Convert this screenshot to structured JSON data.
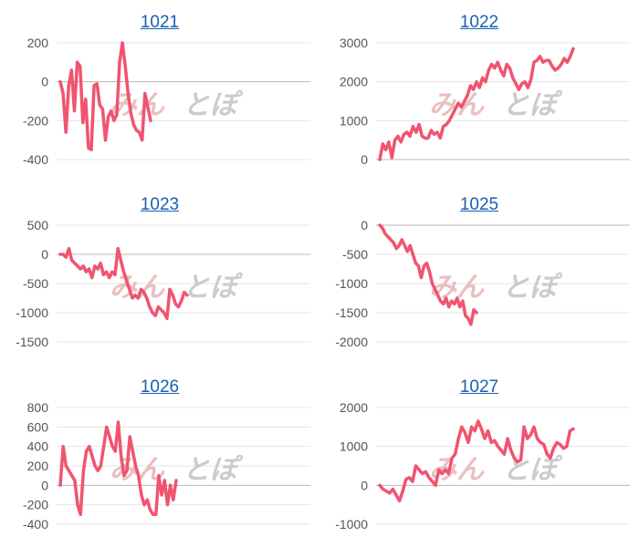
{
  "watermark": {
    "part1": "みん",
    "part2": "とぽ"
  },
  "colors": {
    "series": "#f0546f",
    "title": "#1a5fb4",
    "grid": "#e4e4e4"
  },
  "chart_data": [
    {
      "type": "line",
      "title": "1021",
      "ylim": [
        -400,
        200
      ],
      "yticks": [
        200,
        0,
        -200,
        -400
      ],
      "y": [
        0,
        -60,
        -260,
        -20,
        60,
        -150,
        100,
        80,
        -210,
        -90,
        -340,
        -350,
        -20,
        -10,
        -120,
        -140,
        -300,
        -180,
        -150,
        -200,
        -170,
        100,
        200,
        80,
        -60,
        -160,
        -220,
        -250,
        -260,
        -300,
        -60,
        -130,
        -200
      ]
    },
    {
      "type": "line",
      "title": "1022",
      "ylim": [
        0,
        3000
      ],
      "yticks": [
        3000,
        2000,
        1000,
        0
      ],
      "y": [
        0,
        400,
        250,
        450,
        50,
        500,
        600,
        450,
        650,
        700,
        600,
        850,
        700,
        900,
        600,
        550,
        550,
        750,
        650,
        700,
        550,
        850,
        900,
        1000,
        1150,
        1300,
        1450,
        1350,
        1500,
        1650,
        1900,
        1800,
        2000,
        1850,
        2100,
        2000,
        2300,
        2450,
        2350,
        2500,
        2300,
        2150,
        2450,
        2350,
        2100,
        1950,
        1800,
        1950,
        2000,
        1850,
        2050,
        2500,
        2550,
        2650,
        2500,
        2550,
        2550,
        2400,
        2300,
        2350,
        2450,
        2600,
        2500,
        2650,
        2850
      ]
    },
    {
      "type": "line",
      "title": "1023",
      "ylim": [
        -1500,
        500
      ],
      "yticks": [
        500,
        0,
        -500,
        -1000,
        -1500
      ],
      "y": [
        0,
        0,
        -50,
        100,
        -100,
        -150,
        -200,
        -250,
        -200,
        -300,
        -250,
        -400,
        -200,
        -250,
        -150,
        -350,
        -300,
        -400,
        -300,
        -350,
        100,
        -100,
        -300,
        -450,
        -600,
        -750,
        -700,
        -750,
        -600,
        -650,
        -750,
        -900,
        -1000,
        -1050,
        -900,
        -950,
        -1000,
        -1100,
        -600,
        -700,
        -850,
        -900,
        -800,
        -650,
        -700
      ]
    },
    {
      "type": "line",
      "title": "1025",
      "ylim": [
        -2000,
        0
      ],
      "yticks": [
        0,
        -500,
        -1000,
        -1500,
        -2000
      ],
      "y": [
        0,
        -50,
        -150,
        -200,
        -250,
        -300,
        -400,
        -350,
        -250,
        -350,
        -450,
        -350,
        -500,
        -650,
        -700,
        -900,
        -700,
        -650,
        -800,
        -1000,
        -1100,
        -1200,
        -1300,
        -1350,
        -1250,
        -1400,
        -1300,
        -1350,
        -1250,
        -1400,
        -1300,
        -1550,
        -1600,
        -1700,
        -1450,
        -1500
      ]
    },
    {
      "type": "line",
      "title": "1026",
      "ylim": [
        -400,
        800
      ],
      "yticks": [
        800,
        600,
        400,
        200,
        0,
        -200,
        -400
      ],
      "y": [
        0,
        400,
        200,
        150,
        100,
        50,
        -200,
        -300,
        150,
        350,
        400,
        300,
        200,
        150,
        200,
        400,
        600,
        500,
        400,
        350,
        650,
        300,
        100,
        150,
        500,
        350,
        200,
        100,
        -100,
        -200,
        -150,
        -250,
        -300,
        -300,
        100,
        -100,
        50,
        -200,
        0,
        -150,
        50
      ]
    },
    {
      "type": "line",
      "title": "1027",
      "ylim": [
        -1000,
        2000
      ],
      "yticks": [
        2000,
        1000,
        0,
        -1000
      ],
      "y": [
        0,
        -100,
        -150,
        -200,
        -100,
        -250,
        -400,
        -150,
        150,
        200,
        100,
        500,
        400,
        300,
        350,
        200,
        100,
        0,
        400,
        300,
        400,
        300,
        700,
        800,
        1200,
        1500,
        1350,
        1100,
        1500,
        1400,
        1650,
        1450,
        1200,
        1400,
        1100,
        1150,
        1000,
        900,
        800,
        1200,
        900,
        700,
        600,
        650,
        1500,
        1200,
        1300,
        1500,
        1200,
        1100,
        1050,
        800,
        700,
        950,
        1100,
        1050,
        950,
        1000,
        1400,
        1450
      ]
    }
  ]
}
